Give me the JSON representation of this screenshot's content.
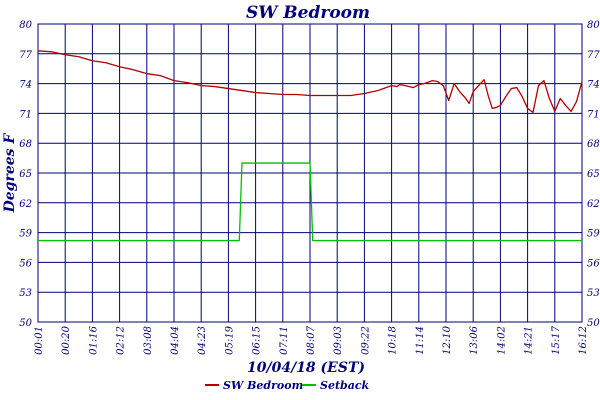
{
  "chart_data": {
    "type": "line",
    "title": "SW Bedroom",
    "xlabel": "10/04/18 (EST)",
    "ylabel": "Degrees F",
    "ylim": [
      50,
      80
    ],
    "yticks": [
      50,
      53,
      56,
      59,
      62,
      65,
      68,
      71,
      74,
      77,
      80
    ],
    "x_tick_labels": [
      "00:01",
      "00:20",
      "01:16",
      "02:12",
      "03:08",
      "04:04",
      "04:23",
      "05:19",
      "06:15",
      "07:11",
      "08:07",
      "09:03",
      "09:22",
      "10:18",
      "11:14",
      "12:10",
      "13:06",
      "14:02",
      "14:21",
      "15:17",
      "16:12"
    ],
    "xlim": [
      0,
      20
    ],
    "grid": true,
    "legend_position": "bottom",
    "series": [
      {
        "name": "SW Bedroom",
        "color": "#b30000",
        "x": [
          0,
          0.5,
          1,
          1.5,
          2,
          2.5,
          3,
          3.5,
          4,
          4.5,
          5,
          5.5,
          6,
          6.5,
          7,
          7.5,
          8,
          8.5,
          9,
          9.5,
          10,
          10.5,
          11,
          11.5,
          12,
          12.5,
          13,
          13.2,
          13.3,
          13.5,
          13.8,
          14.0,
          14.2,
          14.5,
          14.7,
          14.9,
          15.1,
          15.3,
          15.5,
          15.7,
          15.85,
          16.0,
          16.2,
          16.4,
          16.55,
          16.7,
          16.85,
          17.0,
          17.2,
          17.4,
          17.6,
          17.8,
          18.0,
          18.2,
          18.4,
          18.6,
          18.8,
          19.0,
          19.2,
          19.4,
          19.6,
          19.8,
          20.0
        ],
        "y": [
          77.3,
          77.2,
          76.9,
          76.7,
          76.3,
          76.1,
          75.7,
          75.4,
          75.0,
          74.8,
          74.3,
          74.1,
          73.8,
          73.7,
          73.5,
          73.3,
          73.1,
          73.0,
          72.9,
          72.9,
          72.8,
          72.8,
          72.8,
          72.8,
          73.0,
          73.3,
          73.8,
          73.7,
          73.9,
          73.8,
          73.6,
          73.9,
          74.0,
          74.3,
          74.2,
          73.8,
          72.3,
          74.0,
          73.2,
          72.6,
          72.0,
          73.2,
          73.8,
          74.4,
          72.8,
          71.5,
          71.6,
          71.8,
          72.7,
          73.5,
          73.6,
          72.7,
          71.5,
          71.1,
          73.8,
          74.3,
          72.5,
          71.2,
          72.5,
          71.8,
          71.2,
          72.2,
          74.2
        ]
      },
      {
        "name": "Setback",
        "color": "#00c000",
        "x": [
          0,
          7.4,
          7.5,
          10.0,
          10.1,
          20.0
        ],
        "y": [
          58.2,
          58.2,
          66.0,
          66.0,
          58.2,
          58.2
        ]
      }
    ]
  }
}
